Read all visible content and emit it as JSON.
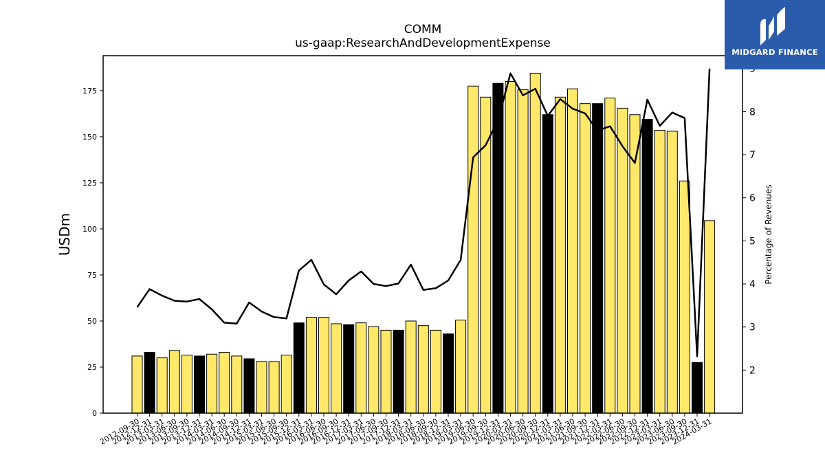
{
  "chart_data": {
    "type": "bar",
    "title": "COMM",
    "subtitle": "us-gaap:ResearchAndDevelopmentExpense",
    "ylabel": "USDm",
    "y2label": "Percentage of Revenues",
    "ylim": [
      0,
      194
    ],
    "y2lim": [
      1.0,
      9.3
    ],
    "yticks": [
      0,
      25,
      50,
      75,
      100,
      125,
      150,
      175
    ],
    "y2ticks": [
      2,
      3,
      4,
      5,
      6,
      7,
      8,
      9
    ],
    "colors": {
      "quarter": "#ffe86a",
      "fiscal_q4": "#000000",
      "line": "#000000",
      "edge": "#000000"
    },
    "categories": [
      "2012-09-30",
      "2012-12-31",
      "2013-03-31",
      "2013-06-30",
      "2013-09-30",
      "2013-12-31",
      "2014-03-31",
      "2014-06-30",
      "2014-09-30",
      "2014-12-31",
      "2015-03-31",
      "2015-06-30",
      "2015-09-30",
      "2015-12-31",
      "2016-03-31",
      "2016-06-30",
      "2016-09-30",
      "2016-12-31",
      "2017-03-31",
      "2017-06-30",
      "2017-09-30",
      "2017-12-31",
      "2018-03-31",
      "2018-06-30",
      "2018-09-30",
      "2018-12-31",
      "2019-03-31",
      "2019-06-30",
      "2019-09-30",
      "2019-12-31",
      "2020-03-31",
      "2020-06-30",
      "2020-09-30",
      "2020-12-31",
      "2021-03-31",
      "2021-06-30",
      "2021-09-30",
      "2021-12-31",
      "2022-03-31",
      "2022-06-30",
      "2022-09-30",
      "2022-12-31",
      "2023-03-31",
      "2023-06-30",
      "2023-09-30",
      "2023-12-31",
      "2024-03-31"
    ],
    "values": [
      31,
      33,
      30,
      34,
      31.5,
      31,
      32,
      33,
      31,
      29.5,
      28,
      28,
      31.5,
      49,
      52,
      52,
      48.5,
      48,
      49,
      47,
      45,
      45,
      50,
      47.5,
      45,
      43,
      50.5,
      177.5,
      171.5,
      179,
      180,
      175.5,
      184.5,
      162,
      171.5,
      176,
      168,
      168,
      171,
      165.5,
      162,
      159.5,
      153.5,
      153,
      126,
      27.5,
      104.5
    ],
    "highlight": [
      false,
      true,
      false,
      false,
      false,
      true,
      false,
      false,
      false,
      true,
      false,
      false,
      false,
      true,
      false,
      false,
      false,
      true,
      false,
      false,
      false,
      true,
      false,
      false,
      false,
      true,
      false,
      false,
      false,
      true,
      false,
      false,
      false,
      true,
      false,
      false,
      false,
      true,
      false,
      false,
      false,
      true,
      false,
      false,
      false,
      true,
      false
    ],
    "line_series": {
      "name": "Percentage of Revenues",
      "values": [
        3.46,
        3.88,
        3.73,
        3.61,
        3.59,
        3.65,
        3.41,
        3.1,
        3.08,
        3.57,
        3.36,
        3.23,
        3.2,
        4.31,
        4.56,
        3.99,
        3.76,
        4.08,
        4.29,
        4.0,
        3.95,
        4.01,
        4.45,
        3.86,
        3.9,
        4.08,
        4.56,
        6.94,
        7.22,
        7.8,
        8.89,
        8.38,
        8.53,
        7.9,
        8.29,
        8.07,
        7.96,
        7.56,
        7.66,
        7.2,
        6.81,
        8.28,
        7.67,
        7.98,
        7.85,
        2.32,
        9.0
      ]
    }
  },
  "logo": {
    "text": "MIDGARD FINANCE",
    "icon": "midgard-logo-icon"
  }
}
